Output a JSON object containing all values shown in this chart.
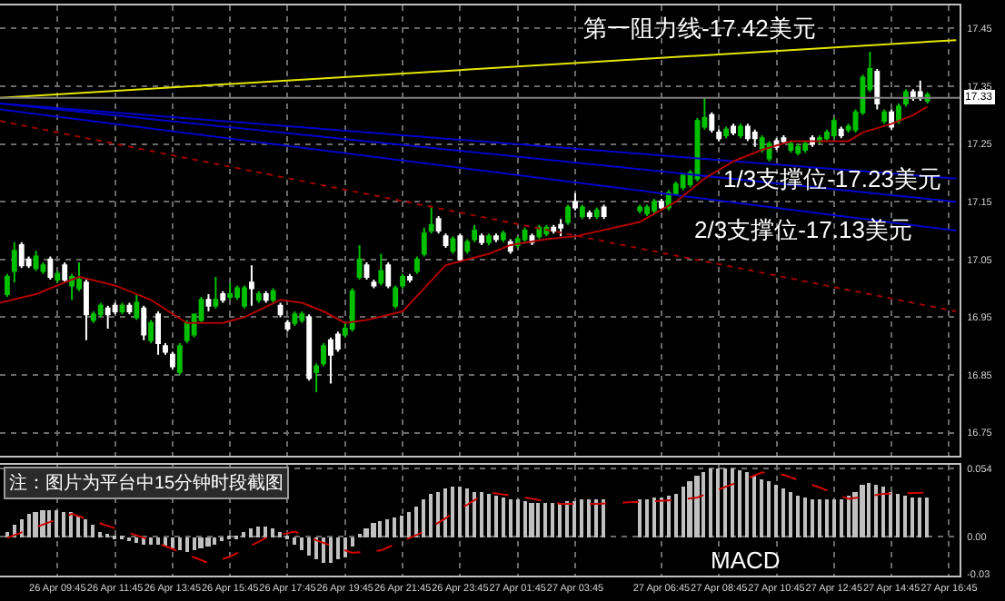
{
  "chart_data": [
    {
      "type": "candlestick",
      "grid": true,
      "tick_labels": "y",
      "colors": [
        "#00c000",
        "#00c000",
        "#ffffff",
        "#ffffff",
        "#00c000",
        "#00c000",
        "#ffffff",
        "#00c000",
        "#ffffff",
        "#00c000",
        "#00c000",
        "#ffffff",
        "#00c000",
        "#00c000",
        "#ffffff",
        "#ffffff",
        "#00c000",
        "#ffffff",
        "#00c000",
        "#ffffff",
        "#00c000",
        "#ffffff",
        "#ffffff",
        "#ffffff",
        "#00c000",
        "#00c000",
        "#00c000",
        "#00c000",
        "#ffffff",
        "#00c000",
        "#ffffff",
        "#00c000",
        "#00c000",
        "#00c000",
        "#ffffff",
        "#00c000",
        "#ffffff",
        "#00c000",
        "#ffffff",
        "#ffffff",
        "#00c000",
        "#00c000",
        "#ffffff",
        "#00c000",
        "#00c000",
        "#ffffff",
        "#ffffff",
        "#00c000",
        "#00c000",
        "#00c000",
        "#ffffff",
        "#ffffff",
        "#00c000",
        "#ffffff",
        "#00c000",
        "#00c000",
        "#ffffff",
        "#00c000",
        "#00c000",
        "#00c000",
        "#ffffff",
        "#ffffff",
        "#00c000",
        "#ffffff",
        "#00c000",
        "#00c000",
        "#ffffff",
        "#00c000",
        "#ffffff",
        "#00c000",
        "#ffffff",
        "#00c000",
        "#00c000",
        "#ffffff",
        "#00c000",
        "#00c000",
        "#ffffff",
        "#ffffff",
        "#00c000",
        "#ffffff",
        "#00c000",
        "#ffffff",
        "#00c000",
        "#ffffff",
        "#00c000",
        "#00c000",
        "#00c000",
        "#ffffff",
        "#00c000",
        "#00c000",
        "#00c000",
        "#00c000",
        "#00c000",
        "#00c000",
        "#ffffff",
        "#ffffff",
        "#00c000",
        "#ffffff",
        "#00c000",
        "#ffffff",
        "#ffffff",
        "#00c000",
        "#00c000",
        "#ffffff",
        "#ffffff",
        "#00c000",
        "#00c000",
        "#00c000",
        "#ffffff",
        "#00c000",
        "#00c000",
        "#00c000",
        "#ffffff",
        "#00c000",
        "#00c000",
        "#00c000",
        "#00c000",
        "#ffffff",
        "#00c000",
        "#ffffff",
        "#00c000",
        "#00c000",
        "#ffffff",
        "#ffffff",
        "#00c000"
      ],
      "x": [
        "--04-26T08:00",
        "--04-26T08:15",
        "--04-26T08:30",
        "--04-26T08:45",
        "--04-26T09:00",
        "--04-26T09:15",
        "--04-26T09:30",
        "--04-26T09:45",
        "--04-26T10:00",
        "--04-26T10:15",
        "--04-26T10:30",
        "--04-26T10:45",
        "--04-26T11:00",
        "--04-26T11:15",
        "--04-26T11:30",
        "--04-26T11:45",
        "--04-26T12:00",
        "--04-26T12:15",
        "--04-26T12:30",
        "--04-26T12:45",
        "--04-26T13:00",
        "--04-26T13:15",
        "--04-26T13:30",
        "--04-26T13:45",
        "--04-26T14:00",
        "--04-26T14:15",
        "--04-26T14:30",
        "--04-26T14:45",
        "--04-26T15:00",
        "--04-26T15:15",
        "--04-26T15:30",
        "--04-26T15:45",
        "--04-26T16:00",
        "--04-26T16:15",
        "--04-26T16:30",
        "--04-26T16:45",
        "--04-26T17:00",
        "--04-26T17:15",
        "--04-26T17:30",
        "--04-26T17:45",
        "--04-26T18:00",
        "--04-26T18:15",
        "--04-26T18:30",
        "--04-26T18:45",
        "--04-26T19:00",
        "--04-26T19:15",
        "--04-26T19:30",
        "--04-26T19:45",
        "--04-26T20:00",
        "--04-26T20:15",
        "--04-26T20:30",
        "--04-26T20:45",
        "--04-26T21:00",
        "--04-26T21:15",
        "--04-26T21:30",
        "--04-26T21:45",
        "--04-26T22:00",
        "--04-26T22:15",
        "--04-26T22:30",
        "--04-26T22:45",
        "--04-26T23:00",
        "--04-26T23:15",
        "--04-26T23:30",
        "--04-26T23:45",
        "--04-27T00:00",
        "--04-27T00:15",
        "--04-27T00:30",
        "--04-27T00:45",
        "--04-27T01:00",
        "--04-27T01:15",
        "--04-27T01:30",
        "--04-27T01:45",
        "--04-27T02:00",
        "--04-27T02:15",
        "--04-27T02:30",
        "--04-27T02:45",
        "--04-27T03:00",
        "--04-27T03:15",
        "--04-27T03:30",
        "--04-27T03:45",
        "--04-27T04:00",
        "--04-27T04:15",
        "--04-27T04:30",
        "--04-27T04:45",
        "--04-27T06:00",
        "--04-27T06:15",
        "--04-27T06:30",
        "--04-27T06:45",
        "--04-27T07:00",
        "--04-27T07:15",
        "--04-27T07:30",
        "--04-27T07:45",
        "--04-27T08:00",
        "--04-27T08:15",
        "--04-27T08:30",
        "--04-27T08:45",
        "--04-27T09:00",
        "--04-27T09:15",
        "--04-27T09:30",
        "--04-27T09:45",
        "--04-27T10:00",
        "--04-27T10:15",
        "--04-27T10:30",
        "--04-27T10:45",
        "--04-27T11:00",
        "--04-27T11:15",
        "--04-27T11:30",
        "--04-27T11:45",
        "--04-27T12:00",
        "--04-27T12:15",
        "--04-27T12:30",
        "--04-27T12:45",
        "--04-27T13:00",
        "--04-27T13:15",
        "--04-27T13:30",
        "--04-27T13:45",
        "--04-27T14:00",
        "--04-27T14:15",
        "--04-27T14:30",
        "--04-27T14:45",
        "--04-27T15:00",
        "--04-27T15:15",
        "--04-27T15:30",
        "--04-27T15:45",
        "--04-27T16:00"
      ],
      "ohlc": [
        [
          16.99,
          17.025,
          16.985,
          17.02
        ],
        [
          17.03,
          17.08,
          17.01,
          17.065
        ],
        [
          17.075,
          17.08,
          17.035,
          17.04
        ],
        [
          17.05,
          17.055,
          17.035,
          17.04
        ],
        [
          17.035,
          17.065,
          17.03,
          17.055
        ],
        [
          17.03,
          17.045,
          17.025,
          17.04
        ],
        [
          17.05,
          17.055,
          17.015,
          17.02
        ],
        [
          17.015,
          17.03,
          17.01,
          17.025
        ],
        [
          17.04,
          17.045,
          17.01,
          17.015
        ],
        [
          17.005,
          17.025,
          16.98,
          17.02
        ],
        [
          17.0,
          17.045,
          16.995,
          17.015
        ],
        [
          17.01,
          17.015,
          16.91,
          16.955
        ],
        [
          16.945,
          16.96,
          16.94,
          16.955
        ],
        [
          16.955,
          16.975,
          16.95,
          16.97
        ],
        [
          16.965,
          16.97,
          16.93,
          16.955
        ],
        [
          16.97,
          16.975,
          16.955,
          16.96
        ],
        [
          16.96,
          16.975,
          16.955,
          16.97
        ],
        [
          16.97,
          16.975,
          16.955,
          16.96
        ],
        [
          16.95,
          16.99,
          16.945,
          16.975
        ],
        [
          16.965,
          16.97,
          16.91,
          16.92
        ],
        [
          16.91,
          16.945,
          16.905,
          16.94
        ],
        [
          16.955,
          16.96,
          16.885,
          16.905
        ],
        [
          16.9,
          16.905,
          16.885,
          16.89
        ],
        [
          16.885,
          16.89,
          16.86,
          16.865
        ],
        [
          16.855,
          16.905,
          16.85,
          16.9
        ],
        [
          16.91,
          16.945,
          16.905,
          16.94
        ],
        [
          16.92,
          16.955,
          16.915,
          16.955
        ],
        [
          16.945,
          16.985,
          16.94,
          16.98
        ],
        [
          16.98,
          16.99,
          16.96,
          16.97
        ],
        [
          16.97,
          17.02,
          16.965,
          16.98
        ],
        [
          16.99,
          16.995,
          16.975,
          16.98
        ],
        [
          16.985,
          17.01,
          16.98,
          16.99
        ],
        [
          16.985,
          17.005,
          16.98,
          17.0
        ],
        [
          16.97,
          17.005,
          16.965,
          17.0
        ],
        [
          17.01,
          17.04,
          16.97,
          17.0
        ],
        [
          16.98,
          16.995,
          16.975,
          16.99
        ],
        [
          16.99,
          16.995,
          16.975,
          16.98
        ],
        [
          16.98,
          17.0,
          16.975,
          16.995
        ],
        [
          16.97,
          16.975,
          16.95,
          16.955
        ],
        [
          16.94,
          16.945,
          16.925,
          16.93
        ],
        [
          16.94,
          16.96,
          16.935,
          16.955
        ],
        [
          16.945,
          16.96,
          16.94,
          16.955
        ],
        [
          16.95,
          16.955,
          16.84,
          16.845
        ],
        [
          16.855,
          16.87,
          16.82,
          16.865
        ],
        [
          16.87,
          16.905,
          16.865,
          16.9
        ],
        [
          16.91,
          16.915,
          16.835,
          16.885
        ],
        [
          16.92,
          16.925,
          16.89,
          16.895
        ],
        [
          16.92,
          16.94,
          16.915,
          16.93
        ],
        [
          16.93,
          17.0,
          16.925,
          16.995
        ],
        [
          17.02,
          17.075,
          17.015,
          17.05
        ],
        [
          17.04,
          17.045,
          17.015,
          17.02
        ],
        [
          17.01,
          17.015,
          17.0,
          17.005
        ],
        [
          17.01,
          17.06,
          17.005,
          17.03
        ],
        [
          17.04,
          17.045,
          17.0,
          17.005
        ],
        [
          16.97,
          17.005,
          16.965,
          17.0
        ],
        [
          17.005,
          17.025,
          17.0,
          17.02
        ],
        [
          17.02,
          17.025,
          17.01,
          17.015
        ],
        [
          17.03,
          17.055,
          17.025,
          17.05
        ],
        [
          17.06,
          17.105,
          17.055,
          17.095
        ],
        [
          17.1,
          17.14,
          17.095,
          17.11
        ],
        [
          17.12,
          17.125,
          17.095,
          17.1
        ],
        [
          17.09,
          17.095,
          17.07,
          17.075
        ],
        [
          17.065,
          17.09,
          17.06,
          17.085
        ],
        [
          17.09,
          17.095,
          17.045,
          17.05
        ],
        [
          17.065,
          17.085,
          17.06,
          17.08
        ],
        [
          17.085,
          17.11,
          17.08,
          17.1
        ],
        [
          17.09,
          17.095,
          17.075,
          17.08
        ],
        [
          17.08,
          17.095,
          17.075,
          17.09
        ],
        [
          17.09,
          17.095,
          17.08,
          17.085
        ],
        [
          17.085,
          17.1,
          17.08,
          17.095
        ],
        [
          17.08,
          17.085,
          17.06,
          17.065
        ],
        [
          17.075,
          17.09,
          17.07,
          17.085
        ],
        [
          17.085,
          17.105,
          17.08,
          17.1
        ],
        [
          17.09,
          17.095,
          17.075,
          17.08
        ],
        [
          17.09,
          17.11,
          17.085,
          17.105
        ],
        [
          17.095,
          17.11,
          17.09,
          17.105
        ],
        [
          17.105,
          17.11,
          17.095,
          17.1
        ],
        [
          17.11,
          17.12,
          17.09,
          17.105
        ],
        [
          17.115,
          17.145,
          17.11,
          17.14
        ],
        [
          17.15,
          17.165,
          17.135,
          17.14
        ],
        [
          17.125,
          17.145,
          17.12,
          17.14
        ],
        [
          17.13,
          17.135,
          17.12,
          17.125
        ],
        [
          17.125,
          17.14,
          17.12,
          17.135
        ],
        [
          17.14,
          17.145,
          17.12,
          17.125
        ],
        [
          17.135,
          17.145,
          17.13,
          17.14
        ],
        [
          17.13,
          17.145,
          17.125,
          17.14
        ],
        [
          17.135,
          17.155,
          17.13,
          17.15
        ],
        [
          17.15,
          17.155,
          17.135,
          17.14
        ],
        [
          17.14,
          17.17,
          17.135,
          17.165
        ],
        [
          17.165,
          17.185,
          17.16,
          17.18
        ],
        [
          17.175,
          17.2,
          17.17,
          17.195
        ],
        [
          17.18,
          17.205,
          17.175,
          17.2
        ],
        [
          17.19,
          17.295,
          17.185,
          17.29
        ],
        [
          17.28,
          17.33,
          17.275,
          17.295
        ],
        [
          17.3,
          17.305,
          17.27,
          17.275
        ],
        [
          17.27,
          17.275,
          17.255,
          17.26
        ],
        [
          17.265,
          17.28,
          17.26,
          17.275
        ],
        [
          17.28,
          17.285,
          17.265,
          17.27
        ],
        [
          17.265,
          17.285,
          17.26,
          17.28
        ],
        [
          17.28,
          17.285,
          17.255,
          17.26
        ],
        [
          17.27,
          17.275,
          17.245,
          17.26
        ],
        [
          17.24,
          17.265,
          17.235,
          17.26
        ],
        [
          17.225,
          17.255,
          17.22,
          17.25
        ],
        [
          17.255,
          17.26,
          17.24,
          17.245
        ],
        [
          17.26,
          17.265,
          17.25,
          17.255
        ],
        [
          17.24,
          17.255,
          17.235,
          17.25
        ],
        [
          17.235,
          17.25,
          17.23,
          17.245
        ],
        [
          17.24,
          17.255,
          17.235,
          17.25
        ],
        [
          17.26,
          17.265,
          17.245,
          17.25
        ],
        [
          17.255,
          17.265,
          17.25,
          17.26
        ],
        [
          17.26,
          17.275,
          17.255,
          17.27
        ],
        [
          17.265,
          17.295,
          17.26,
          17.29
        ],
        [
          17.275,
          17.28,
          17.26,
          17.265
        ],
        [
          17.275,
          17.285,
          17.27,
          17.28
        ],
        [
          17.275,
          17.31,
          17.27,
          17.305
        ],
        [
          17.305,
          17.37,
          17.3,
          17.365
        ],
        [
          17.345,
          17.41,
          17.34,
          17.38
        ],
        [
          17.375,
          17.38,
          17.31,
          17.32
        ],
        [
          17.29,
          17.31,
          17.285,
          17.305
        ],
        [
          17.305,
          17.31,
          17.275,
          17.28
        ],
        [
          17.29,
          17.32,
          17.285,
          17.315
        ],
        [
          17.32,
          17.345,
          17.315,
          17.34
        ],
        [
          17.34,
          17.345,
          17.325,
          17.33
        ],
        [
          17.34,
          17.36,
          17.325,
          17.33
        ],
        [
          17.325,
          17.34,
          17.32,
          17.335
        ]
      ],
      "series": [
        {
          "type": "line",
          "color": "#e6e600",
          "x": [
            "--04-26T07:45",
            "--04-27T17:00"
          ],
          "values": [
            17.33,
            17.43
          ]
        },
        {
          "type": "line",
          "color": "#0000cc",
          "x": [
            "--04-26T07:45",
            "--04-27T17:00"
          ],
          "values": [
            17.32,
            17.19
          ]
        },
        {
          "type": "line",
          "color": "#0000cc",
          "x": [
            "--04-26T07:45",
            "--04-27T17:00"
          ],
          "values": [
            17.32,
            17.15
          ]
        },
        {
          "type": "line",
          "color": "#0000cc",
          "x": [
            "--04-26T07:45",
            "--04-27T17:00"
          ],
          "values": [
            17.31,
            17.1
          ]
        },
        {
          "type": "line",
          "color": "#a00000",
          "line_style": "dotted",
          "x": [
            "--04-26T07:45",
            "--04-27T17:00"
          ],
          "values": [
            17.29,
            16.96
          ]
        },
        {
          "type": "line",
          "color": "#b00000",
          "x": [
            "--04-26T07:45",
            "--04-26T09:00",
            "--04-26T10:30",
            "--04-26T11:45",
            "--04-26T13:00",
            "--04-26T14:15",
            "--04-26T15:30",
            "--04-26T16:15",
            "--04-26T17:30",
            "--04-26T18:15",
            "--04-26T19:00",
            "--04-26T19:45",
            "--04-26T20:30",
            "--04-26T21:45",
            "--04-26T22:30",
            "--04-26T23:15",
            "--04-27T00:00",
            "--04-27T00:45",
            "--04-27T01:30",
            "--04-27T02:45",
            "--04-27T03:45",
            "--04-27T06:00",
            "--04-27T07:15",
            "--04-27T08:15",
            "--04-27T09:15",
            "--04-27T10:15",
            "--04-27T11:15",
            "--04-27T12:15",
            "--04-27T13:15",
            "--04-27T13:45",
            "--04-27T14:45",
            "--04-27T15:30",
            "--04-27T16:00"
          ],
          "values": [
            16.975,
            16.99,
            17.02,
            17.005,
            16.98,
            16.94,
            16.94,
            16.95,
            16.98,
            16.975,
            16.96,
            16.94,
            16.945,
            16.96,
            17.0,
            17.04,
            17.05,
            17.06,
            17.075,
            17.085,
            17.09,
            17.115,
            17.15,
            17.19,
            17.22,
            17.24,
            17.255,
            17.255,
            17.255,
            17.27,
            17.285,
            17.3,
            17.315
          ]
        }
      ],
      "ref_lines": [
        {
          "axis": "y",
          "value": 17.33,
          "label": "17.33",
          "color": "#808080"
        }
      ],
      "annotations": [
        "第一阻力线-17.42美元",
        "1/3支撑位-17.23美元",
        "2/3支撑位-17.13美元"
      ],
      "xlim": [
        "--04-26T07:45",
        "--04-27T17:07"
      ],
      "xticks": [
        {
          "value": "--04-26T09:45",
          "label": "26 Apr 09:45"
        },
        {
          "value": "--04-26T11:45",
          "label": "26 Apr 11:45"
        },
        {
          "value": "--04-26T13:45",
          "label": "26 Apr 13:45"
        },
        {
          "value": "--04-26T15:45",
          "label": "26 Apr 15:45"
        },
        {
          "value": "--04-26T17:45",
          "label": "26 Apr 17:45"
        },
        {
          "value": "--04-26T19:45",
          "label": "26 Apr 19:45"
        },
        {
          "value": "--04-26T21:45",
          "label": "26 Apr 21:45"
        },
        {
          "value": "--04-26T23:45",
          "label": "26 Apr 23:45"
        },
        {
          "value": "--04-27T01:45",
          "label": "27 Apr 01:45"
        },
        {
          "value": "--04-27T03:45",
          "label": "27 Apr 03:45"
        },
        {
          "value": "--04-27T06:45",
          "label": "27 Apr 06:45"
        },
        {
          "value": "--04-27T08:45",
          "label": "27 Apr 08:45"
        },
        {
          "value": "--04-27T10:45",
          "label": "27 Apr 10:45"
        },
        {
          "value": "--04-27T12:45",
          "label": "27 Apr 12:45"
        },
        {
          "value": "--04-27T14:45",
          "label": "27 Apr 14:45"
        },
        {
          "value": "--04-27T16:45",
          "label": "27 Apr 16:45"
        }
      ],
      "ylim": [
        16.71,
        17.49
      ],
      "yticks": [
        16.75,
        16.85,
        16.95,
        17.05,
        17.15,
        17.25,
        17.35,
        17.45
      ]
    },
    {
      "type": "bar",
      "color": "#c0c0c0",
      "grid": true,
      "x": [
        "--04-26T08:00",
        "--04-26T08:15",
        "--04-26T08:30",
        "--04-26T08:45",
        "--04-26T09:00",
        "--04-26T09:15",
        "--04-26T09:30",
        "--04-26T09:45",
        "--04-26T10:00",
        "--04-26T10:15",
        "--04-26T10:30",
        "--04-26T10:45",
        "--04-26T11:00",
        "--04-26T11:15",
        "--04-26T11:30",
        "--04-26T11:45",
        "--04-26T12:00",
        "--04-26T12:15",
        "--04-26T12:30",
        "--04-26T12:45",
        "--04-26T13:00",
        "--04-26T13:15",
        "--04-26T13:30",
        "--04-26T13:45",
        "--04-26T14:00",
        "--04-26T14:15",
        "--04-26T14:30",
        "--04-26T14:45",
        "--04-26T15:00",
        "--04-26T15:15",
        "--04-26T15:30",
        "--04-26T15:45",
        "--04-26T16:00",
        "--04-26T16:15",
        "--04-26T16:30",
        "--04-26T16:45",
        "--04-26T17:00",
        "--04-26T17:15",
        "--04-26T17:30",
        "--04-26T17:45",
        "--04-26T18:00",
        "--04-26T18:15",
        "--04-26T18:30",
        "--04-26T18:45",
        "--04-26T19:00",
        "--04-26T19:15",
        "--04-26T19:30",
        "--04-26T19:45",
        "--04-26T20:00",
        "--04-26T20:15",
        "--04-26T20:30",
        "--04-26T20:45",
        "--04-26T21:00",
        "--04-26T21:15",
        "--04-26T21:30",
        "--04-26T21:45",
        "--04-26T22:00",
        "--04-26T22:15",
        "--04-26T22:30",
        "--04-26T22:45",
        "--04-26T23:00",
        "--04-26T23:15",
        "--04-26T23:30",
        "--04-26T23:45",
        "--04-27T00:00",
        "--04-27T00:15",
        "--04-27T00:30",
        "--04-27T00:45",
        "--04-27T01:00",
        "--04-27T01:15",
        "--04-27T01:30",
        "--04-27T01:45",
        "--04-27T02:00",
        "--04-27T02:15",
        "--04-27T02:30",
        "--04-27T02:45",
        "--04-27T03:00",
        "--04-27T03:15",
        "--04-27T03:30",
        "--04-27T03:45",
        "--04-27T04:00",
        "--04-27T04:15",
        "--04-27T04:30",
        "--04-27T04:45",
        "--04-27T06:00",
        "--04-27T06:15",
        "--04-27T06:30",
        "--04-27T06:45",
        "--04-27T07:00",
        "--04-27T07:15",
        "--04-27T07:30",
        "--04-27T07:45",
        "--04-27T08:00",
        "--04-27T08:15",
        "--04-27T08:30",
        "--04-27T08:45",
        "--04-27T09:00",
        "--04-27T09:15",
        "--04-27T09:30",
        "--04-27T09:45",
        "--04-27T10:00",
        "--04-27T10:15",
        "--04-27T10:30",
        "--04-27T10:45",
        "--04-27T11:00",
        "--04-27T11:15",
        "--04-27T11:30",
        "--04-27T11:45",
        "--04-27T12:00",
        "--04-27T12:15",
        "--04-27T12:30",
        "--04-27T12:45",
        "--04-27T13:00",
        "--04-27T13:15",
        "--04-27T13:30",
        "--04-27T13:45",
        "--04-27T14:00",
        "--04-27T14:15",
        "--04-27T14:30",
        "--04-27T14:45",
        "--04-27T15:00",
        "--04-27T15:15",
        "--04-27T15:30",
        "--04-27T15:45",
        "--04-27T16:00"
      ],
      "values": [
        0.004,
        0.009,
        0.014,
        0.018,
        0.02,
        0.021,
        0.021,
        0.021,
        0.02,
        0.019,
        0.016,
        0.014,
        0.009,
        0.004,
        0.001,
        -0.001,
        -0.002,
        -0.003,
        -0.005,
        -0.006,
        -0.007,
        -0.007,
        -0.008,
        -0.01,
        -0.011,
        -0.012,
        -0.011,
        -0.01,
        -0.008,
        -0.006,
        -0.003,
        -0.002,
        -0.001,
        0.004,
        0.006,
        0.008,
        0.008,
        0.006,
        0.004,
        -0.001,
        -0.006,
        -0.011,
        -0.015,
        -0.018,
        -0.021,
        -0.021,
        -0.018,
        -0.016,
        -0.008,
        0.001,
        0.006,
        0.011,
        0.013,
        0.014,
        0.015,
        0.016,
        0.019,
        0.024,
        0.029,
        0.034,
        0.036,
        0.038,
        0.039,
        0.039,
        0.038,
        0.036,
        0.035,
        0.034,
        0.033,
        0.031,
        0.03,
        0.029,
        0.028,
        0.026,
        0.026,
        0.026,
        0.026,
        0.027,
        0.028,
        0.028,
        0.029,
        0.029,
        0.029,
        0.03,
        0.03,
        0.03,
        0.031,
        0.031,
        0.033,
        0.034,
        0.039,
        0.044,
        0.049,
        0.051,
        0.054,
        0.054,
        0.054,
        0.054,
        0.053,
        0.051,
        0.049,
        0.046,
        0.044,
        0.041,
        0.038,
        0.035,
        0.033,
        0.031,
        0.03,
        0.03,
        0.03,
        0.03,
        0.03,
        0.033,
        0.036,
        0.041,
        0.043,
        0.041,
        0.039,
        0.036,
        0.034,
        0.032,
        0.031,
        0.031,
        0.031
      ],
      "series": [
        {
          "type": "line",
          "color": "#d00000",
          "line_style": "dashed",
          "x": [
            "--04-26T08:00",
            "--04-26T10:15",
            "--04-26T12:45",
            "--04-26T15:00",
            "--04-26T15:45",
            "--04-26T17:00",
            "--04-26T18:00",
            "--04-26T18:45",
            "--04-26T20:00",
            "--04-26T21:00",
            "--04-26T22:30",
            "--04-27T00:15",
            "--04-27T00:45",
            "--04-27T02:00",
            "--04-27T03:15",
            "--04-27T04:30",
            "--04-27T07:15",
            "--04-27T08:00",
            "--04-27T09:30",
            "--04-27T10:15",
            "--04-27T11:00",
            "--04-27T12:15",
            "--04-27T13:15",
            "--04-27T14:30",
            "--04-27T16:00"
          ],
          "values": [
            -0.001,
            0.018,
            -0.001,
            -0.021,
            -0.016,
            -0.001,
            0.004,
            -0.003,
            -0.013,
            -0.011,
            0.004,
            0.029,
            0.035,
            0.031,
            0.026,
            0.026,
            0.029,
            0.031,
            0.044,
            0.051,
            0.049,
            0.039,
            0.03,
            0.034,
            0.035
          ]
        }
      ],
      "annotations": [
        "MACD",
        "注：图片为平台中15分钟时段截图"
      ],
      "xlim": [
        "--04-26T07:45",
        "--04-27T17:07"
      ],
      "xticks": [
        {
          "value": "--04-26T09:45",
          "label": "26 Apr 09:45"
        },
        {
          "value": "--04-26T11:45",
          "label": "26 Apr 11:45"
        },
        {
          "value": "--04-26T13:45",
          "label": "26 Apr 13:45"
        },
        {
          "value": "--04-26T15:45",
          "label": "26 Apr 15:45"
        },
        {
          "value": "--04-26T17:45",
          "label": "26 Apr 17:45"
        },
        {
          "value": "--04-26T19:45",
          "label": "26 Apr 19:45"
        },
        {
          "value": "--04-26T21:45",
          "label": "26 Apr 21:45"
        },
        {
          "value": "--04-26T23:45",
          "label": "26 Apr 23:45"
        },
        {
          "value": "--04-27T01:45",
          "label": "27 Apr 01:45"
        },
        {
          "value": "--04-27T03:45",
          "label": "27 Apr 03:45"
        },
        {
          "value": "--04-27T06:45",
          "label": "27 Apr 06:45"
        },
        {
          "value": "--04-27T08:45",
          "label": "27 Apr 08:45"
        },
        {
          "value": "--04-27T10:45",
          "label": "27 Apr 10:45"
        },
        {
          "value": "--04-27T12:45",
          "label": "27 Apr 12:45"
        },
        {
          "value": "--04-27T14:45",
          "label": "27 Apr 14:45"
        },
        {
          "value": "--04-27T16:45",
          "label": "27 Apr 16:45"
        }
      ],
      "ylim": [
        -0.031,
        0.057
      ],
      "yticks": [
        -0.03,
        {
          "value": 0,
          "label": "0.00"
        },
        0.054
      ]
    }
  ]
}
